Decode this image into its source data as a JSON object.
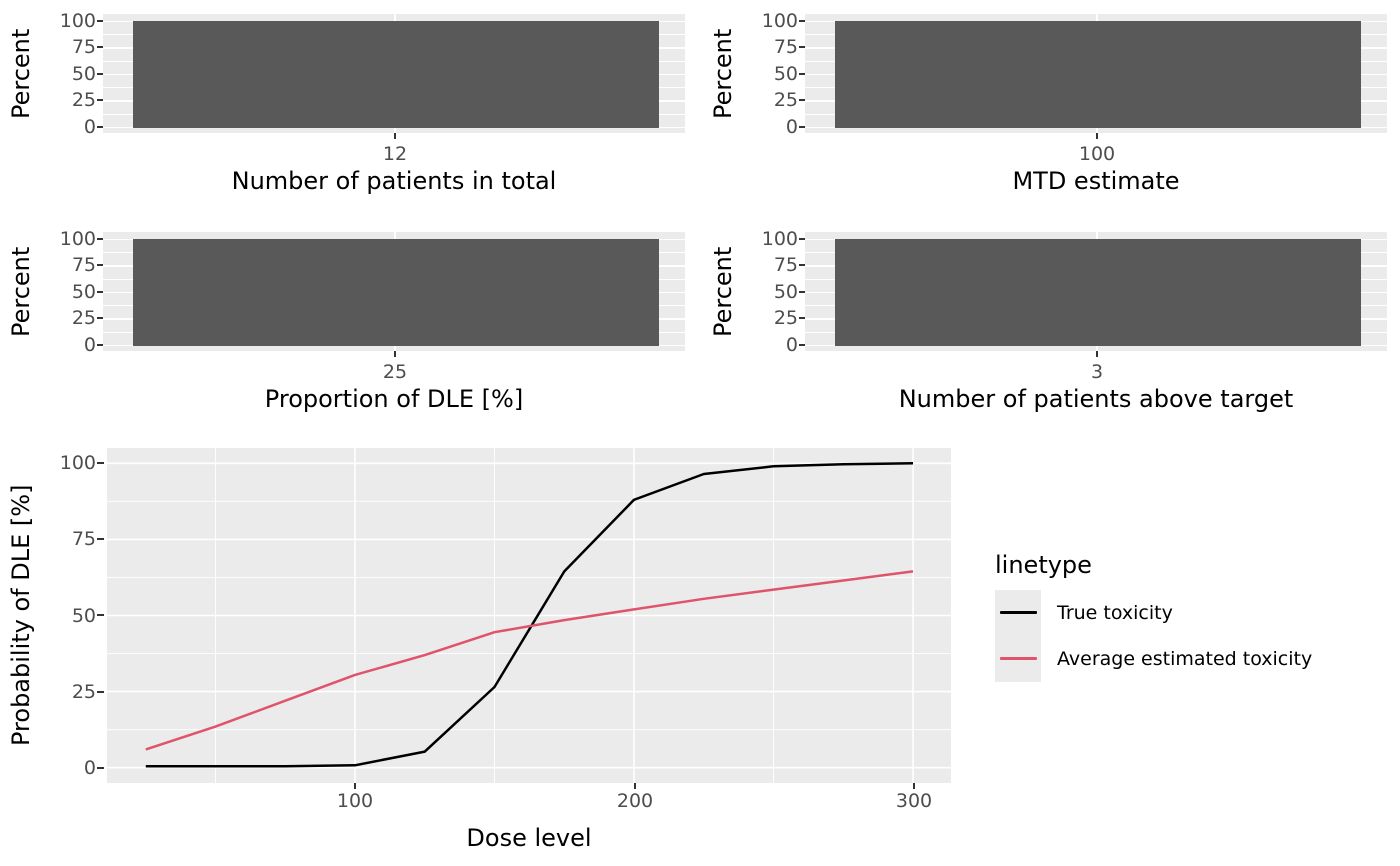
{
  "y_axis_ticks": [
    "100",
    "75",
    "50",
    "25",
    "0"
  ],
  "colors": {
    "panel_bg": "#EBEBEB",
    "grid": "#FFFFFF",
    "bar_fill": "#595959",
    "tick_label": "#4D4D4D",
    "tick_mark": "#333333",
    "true_line": "#000000",
    "estimated_line": "#DF536B"
  },
  "legend": {
    "title": "linetype",
    "entries": [
      {
        "label": "True toxicity",
        "color": "#000000"
      },
      {
        "label": "Average estimated toxicity",
        "color": "#DF536B"
      }
    ]
  },
  "chart_data": [
    {
      "type": "bar",
      "xlabel": "Number of patients in total",
      "ylabel": "Percent",
      "categories": [
        "12"
      ],
      "values": [
        100
      ],
      "ylim": [
        0,
        100
      ],
      "grid": true
    },
    {
      "type": "bar",
      "xlabel": "MTD estimate",
      "ylabel": "Percent",
      "categories": [
        "100"
      ],
      "values": [
        100
      ],
      "ylim": [
        0,
        100
      ],
      "grid": true
    },
    {
      "type": "bar",
      "xlabel": "Proportion of DLE [%]",
      "ylabel": "Percent",
      "categories": [
        "25"
      ],
      "values": [
        100
      ],
      "ylim": [
        0,
        100
      ],
      "grid": true
    },
    {
      "type": "bar",
      "xlabel": "Number of patients above target",
      "ylabel": "Percent",
      "categories": [
        "3"
      ],
      "values": [
        100
      ],
      "ylim": [
        0,
        100
      ],
      "grid": true
    },
    {
      "type": "line",
      "xlabel": "Dose level",
      "ylabel": "Probability of DLE [%]",
      "xticks": [
        "100",
        "200",
        "300"
      ],
      "yticks": [
        0,
        25,
        50,
        75,
        100
      ],
      "xlim": [
        11,
        314
      ],
      "ylim": [
        -5,
        105
      ],
      "grid": true,
      "legend_title": "linetype",
      "legend_position": "right",
      "x": [
        25,
        50,
        75,
        100,
        125,
        150,
        175,
        200,
        225,
        250,
        275,
        300
      ],
      "series": [
        {
          "name": "True toxicity",
          "color": "#000000",
          "values": [
            0.5,
            0.5,
            0.5,
            0.8,
            5.3,
            26.5,
            64.5,
            88,
            96.5,
            99,
            99.7,
            100
          ]
        },
        {
          "name": "Average estimated toxicity",
          "color": "#DF536B",
          "values": [
            6,
            13.5,
            22,
            30.5,
            37,
            44.5,
            48.5,
            52,
            55.5,
            58.5,
            61.5,
            64.5
          ]
        }
      ]
    }
  ]
}
